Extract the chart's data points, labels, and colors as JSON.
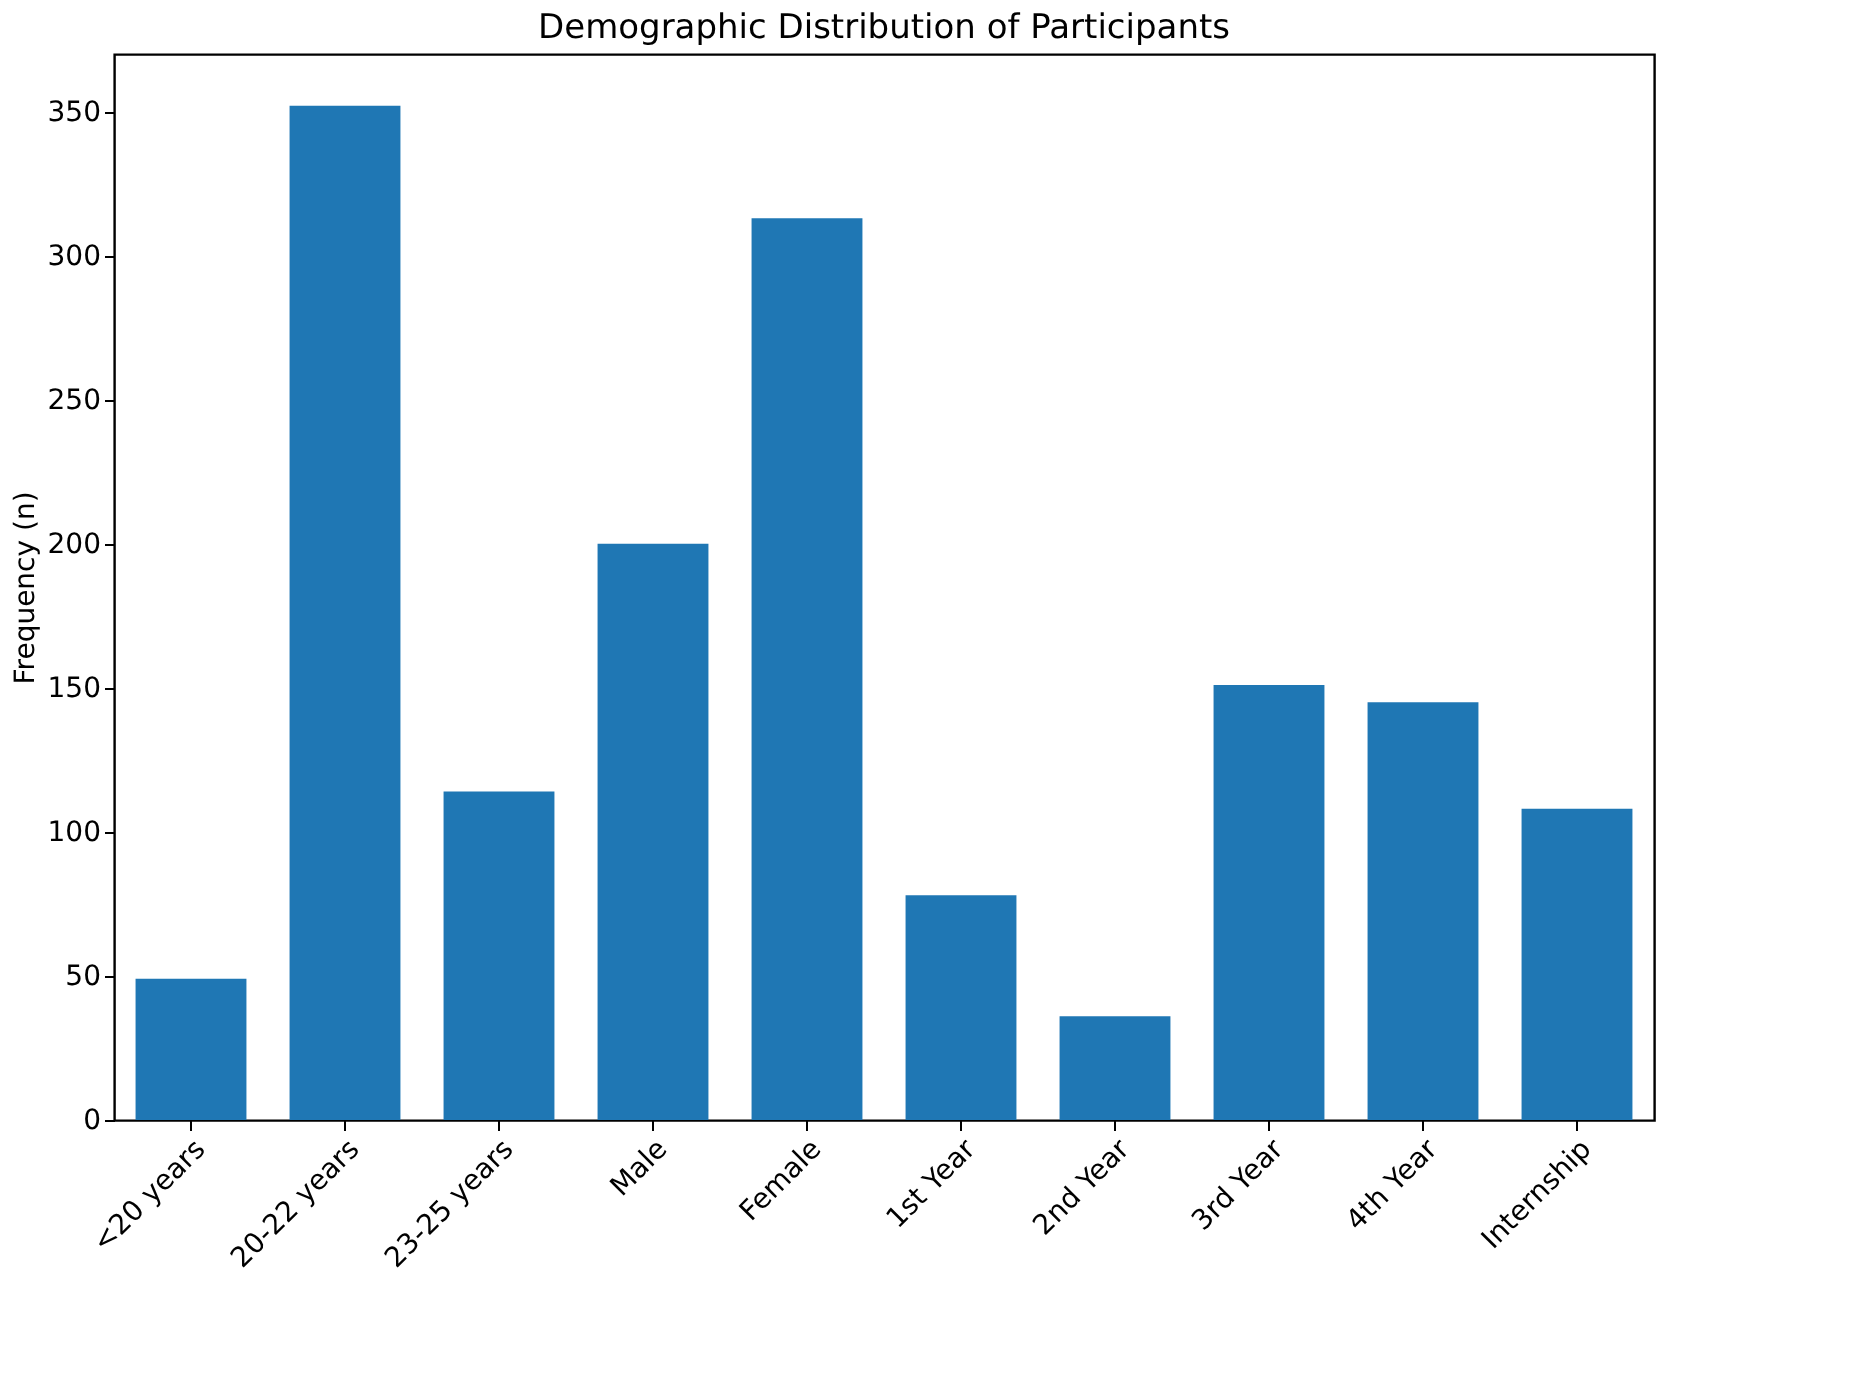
{
  "chart_data": {
    "type": "bar",
    "title": "Demographic Distribution of Participants",
    "ylabel": "Frequency (n)",
    "categories": [
      "<20 years",
      "20-22 years",
      "23-25 years",
      "Male",
      "Female",
      "1st Year",
      "2nd Year",
      "3rd Year",
      "4th Year",
      "Internship"
    ],
    "values": [
      49,
      352,
      114,
      200,
      313,
      78,
      36,
      151,
      145,
      108
    ],
    "color": "#1f77b4",
    "ylim": [
      0,
      370
    ],
    "yticks": [
      0,
      50,
      100,
      150,
      200,
      250,
      300,
      350
    ],
    "grid": false
  }
}
